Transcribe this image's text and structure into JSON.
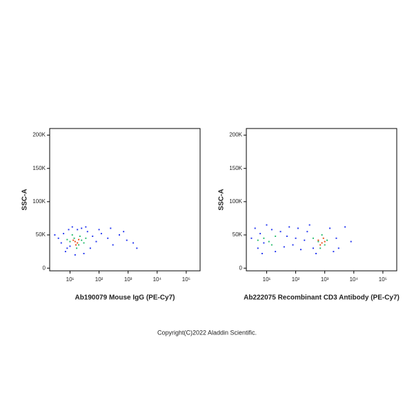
{
  "chart_data": [
    {
      "type": "scatter",
      "x_label": "Ab190079 Mouse IgG (PE-Cy7)",
      "y_label": "SSC-A",
      "xscale": "log",
      "xlim": [
        2,
        300000
      ],
      "xticks": [
        {
          "value": 10,
          "label": "10¹"
        },
        {
          "value": 100,
          "label": "10²"
        },
        {
          "value": 1000,
          "label": "10³"
        },
        {
          "value": 10000,
          "label": "10⁴"
        },
        {
          "value": 100000,
          "label": "10⁵"
        }
      ],
      "ylim": [
        -4000,
        210000
      ],
      "yticks": [
        0,
        {
          "value": 50000,
          "label": "50K"
        },
        {
          "value": 100000,
          "label": "100K"
        },
        {
          "value": 150000,
          "label": "150K"
        },
        {
          "value": 200000,
          "label": "200K"
        }
      ],
      "series": [
        {
          "color": "#2a3cf0",
          "x": [
            4,
            6,
            8,
            5,
            9,
            12,
            25,
            40,
            60,
            80,
            120,
            200,
            300,
            500,
            900,
            1500,
            2000,
            7,
            15,
            30,
            50,
            100,
            3,
            250,
            700,
            35,
            18,
            10
          ],
          "values": [
            45000,
            52000,
            30000,
            38000,
            58000,
            62000,
            60000,
            55000,
            48000,
            40000,
            52000,
            45000,
            35000,
            50000,
            42000,
            38000,
            30000,
            25000,
            20000,
            22000,
            30000,
            58000,
            50000,
            60000,
            55000,
            62000,
            58000,
            33000
          ]
        },
        {
          "color": "#2fbf71",
          "x": [
            10,
            14,
            20,
            25,
            12,
            30,
            17,
            22,
            8,
            35
          ],
          "values": [
            40000,
            45000,
            35000,
            42000,
            50000,
            38000,
            30000,
            48000,
            43000,
            45000
          ]
        },
        {
          "color": "#e8541c",
          "x": [
            15,
            18,
            20,
            16,
            13
          ],
          "values": [
            40000,
            38000,
            43000,
            35000,
            42000
          ]
        }
      ]
    },
    {
      "type": "scatter",
      "x_label": "Ab222075 Recombinant CD3 Antibody (PE-Cy7)",
      "y_label": "SSC-A",
      "xscale": "log",
      "xlim": [
        2,
        300000
      ],
      "xticks": [
        {
          "value": 10,
          "label": "10¹"
        },
        {
          "value": 100,
          "label": "10²"
        },
        {
          "value": 1000,
          "label": "10³"
        },
        {
          "value": 10000,
          "label": "10⁴"
        },
        {
          "value": 100000,
          "label": "10⁵"
        }
      ],
      "ylim": [
        -4000,
        210000
      ],
      "yticks": [
        0,
        {
          "value": 50000,
          "label": "50K"
        },
        {
          "value": 100000,
          "label": "100K"
        },
        {
          "value": 150000,
          "label": "150K"
        },
        {
          "value": 200000,
          "label": "200K"
        }
      ],
      "series": [
        {
          "color": "#2a3cf0",
          "x": [
            3,
            4,
            5,
            6,
            8,
            10,
            20,
            30,
            50,
            80,
            120,
            200,
            150,
            300,
            500,
            1500,
            2500,
            3000,
            5000,
            8000,
            60,
            40,
            15,
            7,
            100,
            250,
            2000,
            400
          ],
          "values": [
            45000,
            60000,
            30000,
            52000,
            38000,
            65000,
            25000,
            55000,
            48000,
            35000,
            60000,
            42000,
            28000,
            65000,
            22000,
            60000,
            45000,
            30000,
            62000,
            40000,
            62000,
            32000,
            58000,
            22000,
            45000,
            55000,
            25000,
            30000
          ]
        },
        {
          "color": "#2fbf71",
          "x": [
            8,
            12,
            15,
            5,
            20,
            400,
            600,
            800,
            1000,
            1200,
            700
          ],
          "values": [
            45000,
            40000,
            35000,
            42000,
            48000,
            45000,
            40000,
            50000,
            35000,
            42000,
            30000
          ]
        },
        {
          "color": "#e8541c",
          "x": [
            600,
            800,
            900,
            700,
            1000
          ],
          "values": [
            42000,
            38000,
            45000,
            35000,
            40000
          ]
        }
      ]
    }
  ],
  "copyright": "Copyright(C)2022 Aladdin Scientific."
}
